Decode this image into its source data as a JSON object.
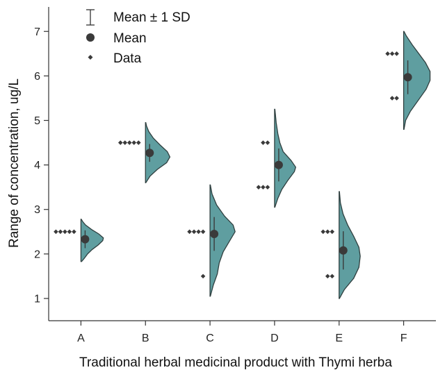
{
  "chart_data": {
    "type": "half-violin",
    "xlabel": "Traditional herbal medicinal product with Thymi herba",
    "ylabel": "Range of concentration, ug/L",
    "ylim": [
      0.5,
      7.55
    ],
    "yticks": [
      1,
      2,
      3,
      4,
      5,
      6,
      7
    ],
    "grid": false,
    "legend_placement": "top-left",
    "legend": [
      {
        "symbol": "errorbar",
        "label": "Mean ± 1 SD"
      },
      {
        "symbol": "circle",
        "label": "Mean"
      },
      {
        "symbol": "diamond",
        "label": "Data"
      }
    ],
    "colors": {
      "violin_fill": "#5f9ea0",
      "violin_edge": "#2f3f3f",
      "mark": "#3a3a3a"
    },
    "categories": [
      "A",
      "B",
      "C",
      "D",
      "E",
      "F"
    ],
    "groups": [
      {
        "name": "A",
        "mean": 2.33,
        "sd": 0.2,
        "points": [
          2.5,
          2.5,
          2.5,
          2.5,
          2.5
        ],
        "violin_min": 1.83,
        "violin_max": 2.78,
        "density": [
          [
            1.83,
            0.01
          ],
          [
            1.9,
            0.05
          ],
          [
            2.0,
            0.1
          ],
          [
            2.1,
            0.17
          ],
          [
            2.2,
            0.26
          ],
          [
            2.3,
            0.33
          ],
          [
            2.36,
            0.34
          ],
          [
            2.45,
            0.27
          ],
          [
            2.55,
            0.16
          ],
          [
            2.65,
            0.07
          ],
          [
            2.72,
            0.03
          ],
          [
            2.78,
            0.005
          ]
        ]
      },
      {
        "name": "B",
        "mean": 4.27,
        "sd": 0.2,
        "points": [
          4.5,
          4.5,
          4.5,
          4.5,
          4.5
        ],
        "violin_min": 3.6,
        "violin_max": 4.95,
        "density": [
          [
            3.6,
            0.005
          ],
          [
            3.75,
            0.07
          ],
          [
            3.9,
            0.18
          ],
          [
            4.05,
            0.32
          ],
          [
            4.18,
            0.37
          ],
          [
            4.3,
            0.33
          ],
          [
            4.45,
            0.22
          ],
          [
            4.6,
            0.12
          ],
          [
            4.75,
            0.05
          ],
          [
            4.88,
            0.015
          ],
          [
            4.95,
            0.005
          ]
        ]
      },
      {
        "name": "C",
        "mean": 2.45,
        "sd": 0.38,
        "points": [
          2.5,
          2.5,
          2.5,
          2.5,
          1.5
        ],
        "violin_min": 1.05,
        "violin_max": 3.55,
        "density": [
          [
            1.05,
            0.005
          ],
          [
            1.3,
            0.05
          ],
          [
            1.55,
            0.11
          ],
          [
            1.8,
            0.14
          ],
          [
            2.05,
            0.2
          ],
          [
            2.3,
            0.3
          ],
          [
            2.5,
            0.38
          ],
          [
            2.65,
            0.35
          ],
          [
            2.85,
            0.22
          ],
          [
            3.1,
            0.1
          ],
          [
            3.35,
            0.03
          ],
          [
            3.55,
            0.005
          ]
        ]
      },
      {
        "name": "D",
        "mean": 4.0,
        "sd": 0.37,
        "points": [
          4.5,
          4.5,
          3.5,
          3.5,
          3.5
        ],
        "violin_min": 3.05,
        "violin_max": 5.25,
        "density": [
          [
            3.05,
            0.005
          ],
          [
            3.25,
            0.05
          ],
          [
            3.45,
            0.11
          ],
          [
            3.65,
            0.2
          ],
          [
            3.85,
            0.3
          ],
          [
            3.95,
            0.32
          ],
          [
            4.1,
            0.25
          ],
          [
            4.3,
            0.13
          ],
          [
            4.5,
            0.08
          ],
          [
            4.7,
            0.05
          ],
          [
            4.95,
            0.025
          ],
          [
            5.25,
            0.005
          ]
        ]
      },
      {
        "name": "E",
        "mean": 2.08,
        "sd": 0.43,
        "points": [
          2.5,
          2.5,
          2.5,
          1.5,
          1.5
        ],
        "violin_min": 1.0,
        "violin_max": 3.4,
        "density": [
          [
            1.0,
            0.005
          ],
          [
            1.2,
            0.08
          ],
          [
            1.45,
            0.22
          ],
          [
            1.7,
            0.3
          ],
          [
            1.95,
            0.32
          ],
          [
            2.15,
            0.3
          ],
          [
            2.4,
            0.22
          ],
          [
            2.65,
            0.13
          ],
          [
            2.9,
            0.06
          ],
          [
            3.15,
            0.02
          ],
          [
            3.4,
            0.005
          ]
        ]
      },
      {
        "name": "F",
        "mean": 5.97,
        "sd": 0.38,
        "points": [
          6.5,
          6.5,
          6.5,
          5.5,
          5.5
        ],
        "violin_min": 4.8,
        "violin_max": 7.0,
        "density": [
          [
            4.8,
            0.005
          ],
          [
            5.0,
            0.03
          ],
          [
            5.2,
            0.1
          ],
          [
            5.45,
            0.22
          ],
          [
            5.7,
            0.34
          ],
          [
            5.9,
            0.4
          ],
          [
            6.1,
            0.4
          ],
          [
            6.3,
            0.33
          ],
          [
            6.5,
            0.23
          ],
          [
            6.7,
            0.13
          ],
          [
            6.9,
            0.04
          ],
          [
            7.0,
            0.005
          ]
        ]
      }
    ]
  }
}
